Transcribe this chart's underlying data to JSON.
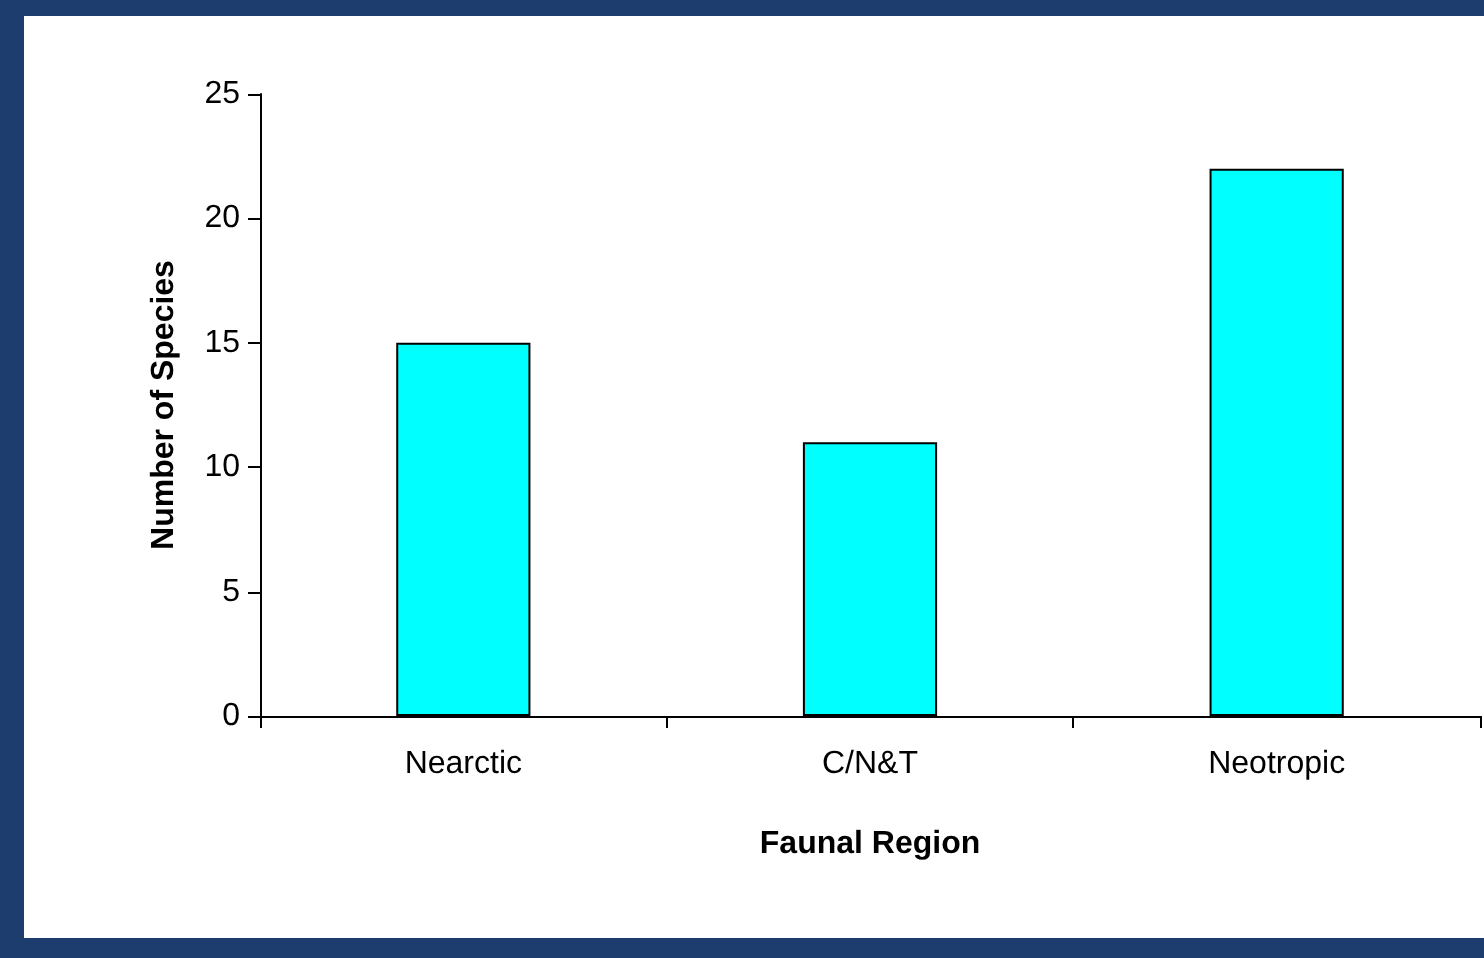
{
  "chart_data": {
    "type": "bar",
    "xlabel": "Faunal Region",
    "ylabel": "Number of Species",
    "categories": [
      "Nearctic",
      "C/N&T",
      "Neotropic"
    ],
    "values": [
      15,
      11,
      22
    ],
    "color": "#00ffff",
    "ylim": [
      0,
      25
    ],
    "yticks": [
      0,
      5,
      10,
      15,
      20,
      25
    ]
  }
}
